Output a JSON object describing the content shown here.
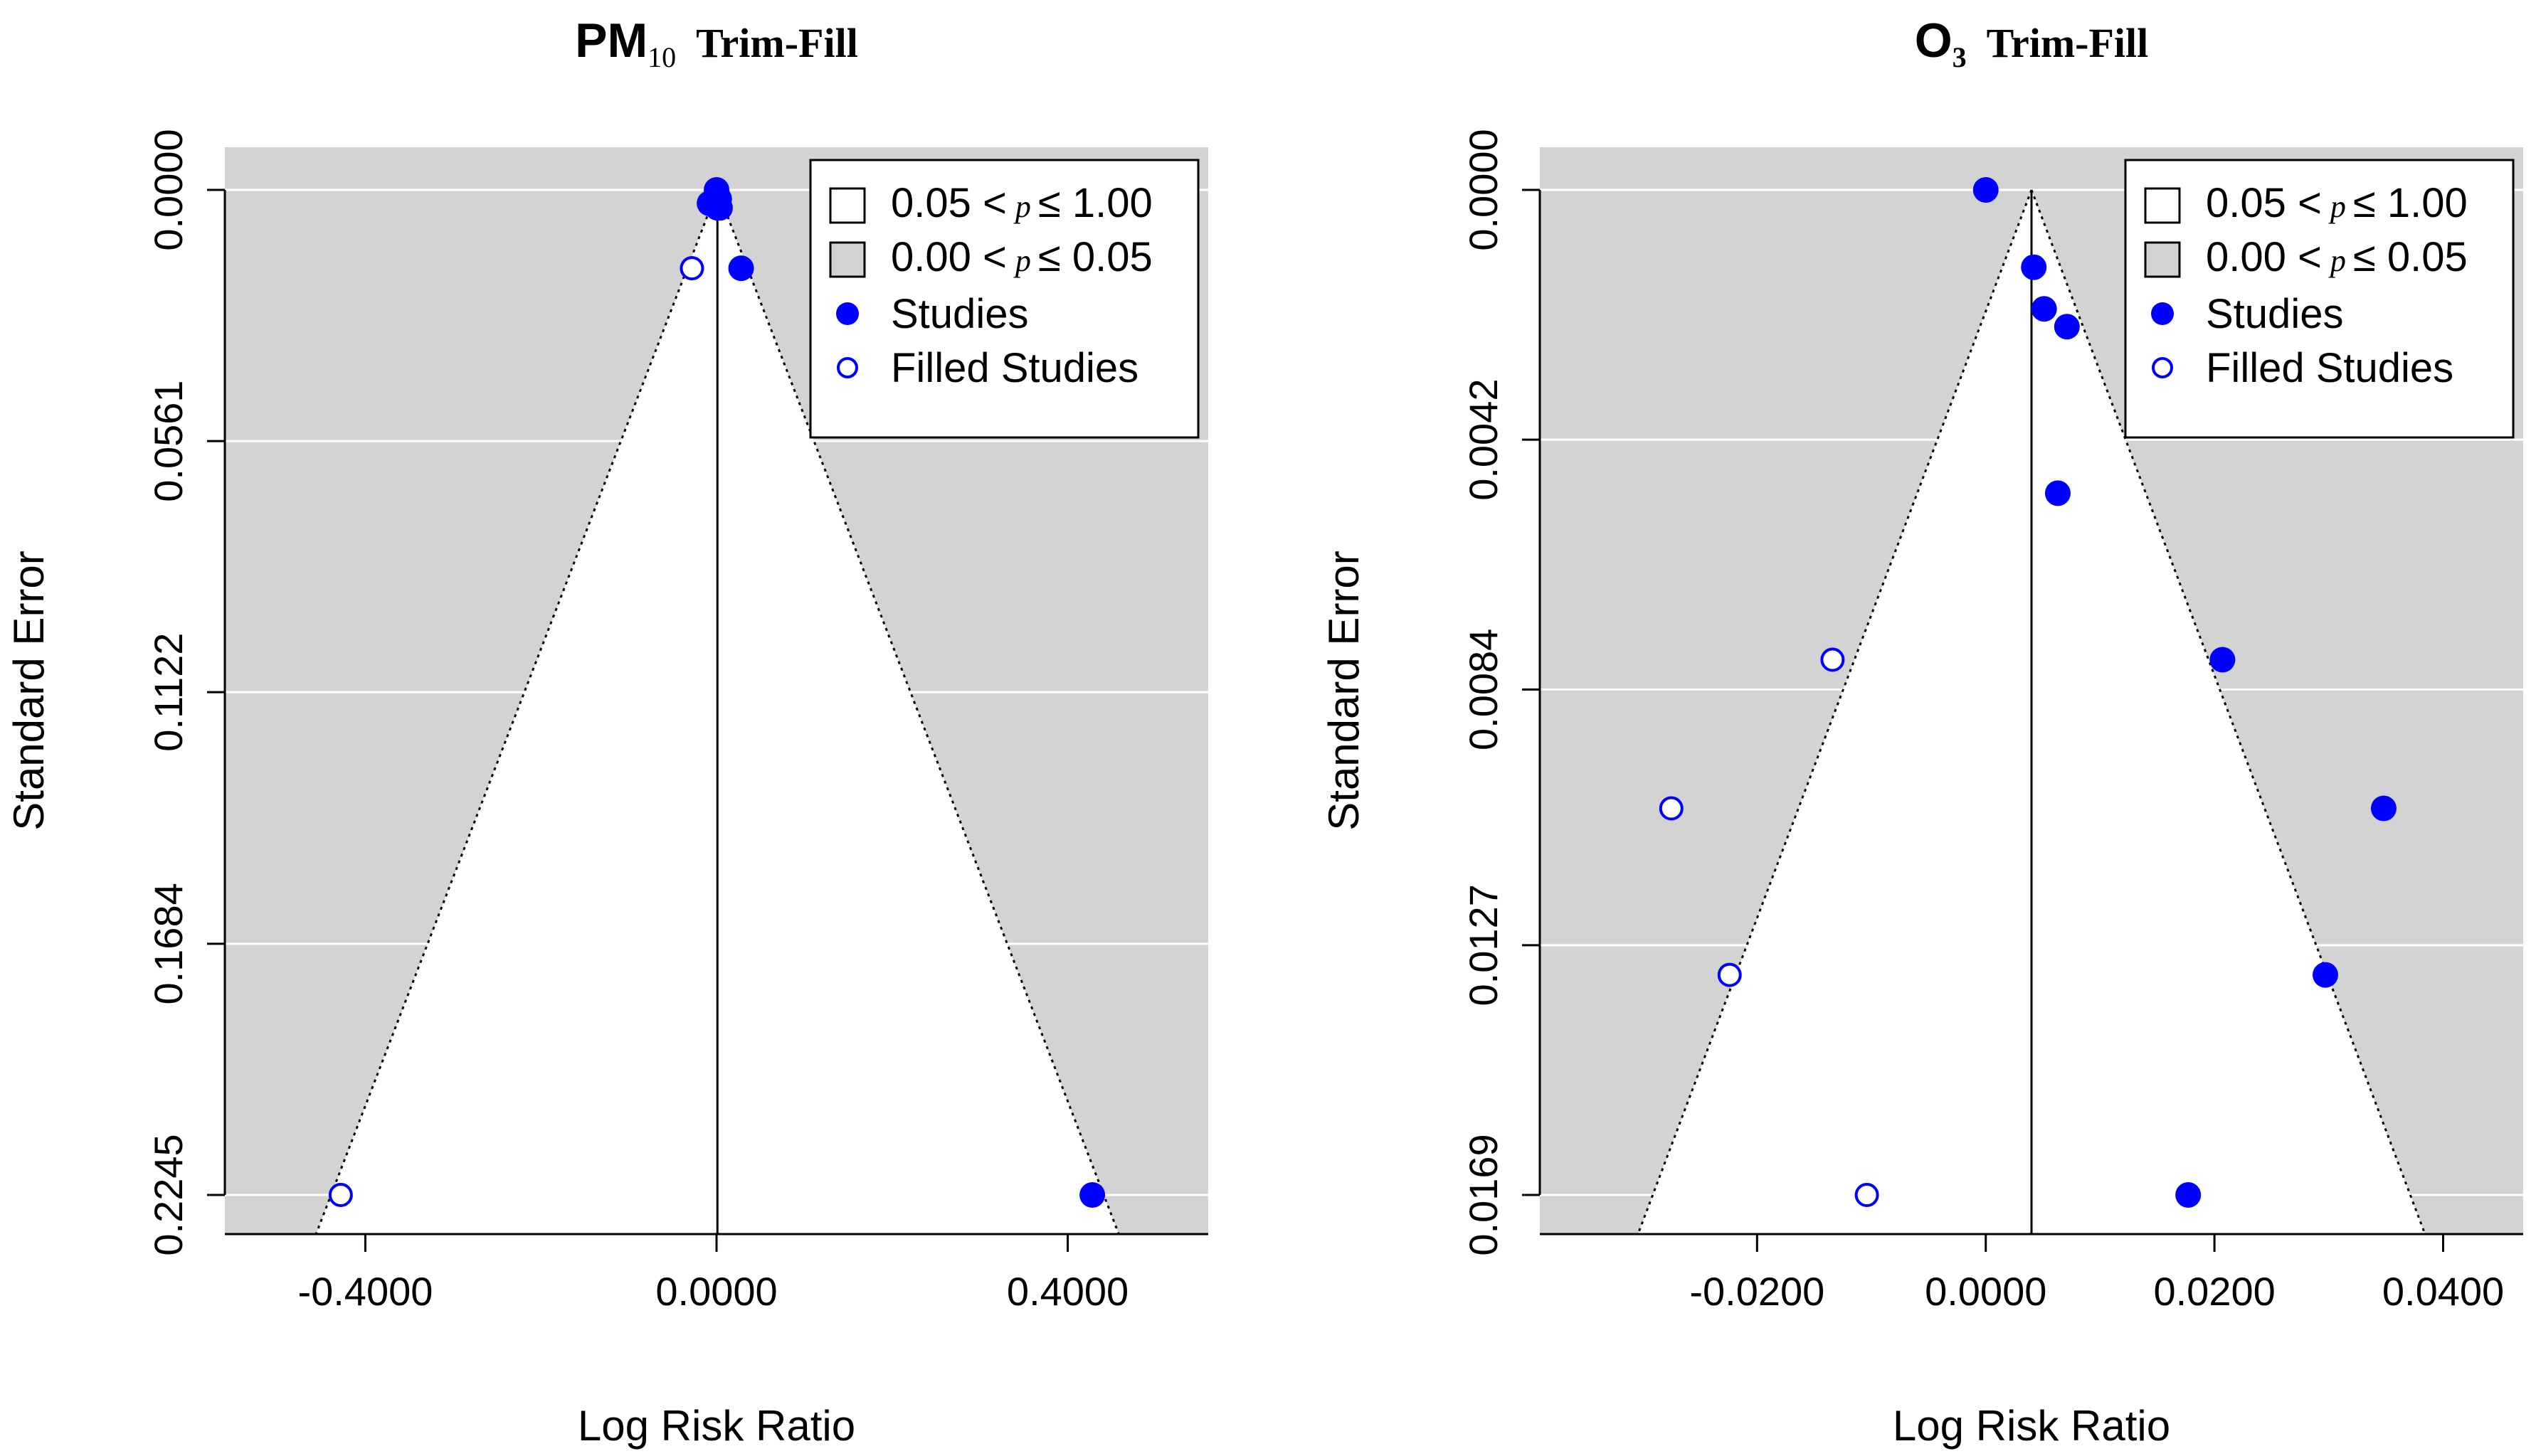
{
  "figure": {
    "colors": {
      "background": "#ffffff",
      "significant_region": "#d3d3d3",
      "study_point": "#0000ff",
      "gridline": "#ffffff",
      "axis": "#000000"
    }
  },
  "chart_data": [
    {
      "type": "scatter",
      "panel": "left",
      "title_main": "PM",
      "title_sub": "10",
      "title_method": "Trim-Fill",
      "xlabel": "Log Risk Ratio",
      "ylabel": "Standard Error",
      "xticks": [
        -0.4,
        0.0,
        0.4
      ],
      "xtick_labels": [
        "-0.4000",
        "0.0000",
        "0.4000"
      ],
      "xlim": [
        -0.56,
        0.56
      ],
      "yticks": [
        0.0,
        0.0561,
        0.1122,
        0.1684,
        0.2245
      ],
      "ytick_labels": [
        "0.0000",
        "0.0561",
        "0.1122",
        "0.1684",
        "0.2245"
      ],
      "ylim": [
        0.2245,
        0.0
      ],
      "y_reversed": true,
      "center_line": 0.001,
      "funnel": {
        "apex_x": 0.001,
        "z": 1.96,
        "se_max": 0.2245
      },
      "legend": {
        "position": "top-right",
        "items": [
          {
            "type": "box-white",
            "prefix": "0.05 <",
            "p": "p",
            "suffix": "≤ 1.00"
          },
          {
            "type": "box-gray",
            "prefix": "0.00 <",
            "p": "p",
            "suffix": "≤ 0.05"
          },
          {
            "type": "filled",
            "label": "Studies"
          },
          {
            "type": "open",
            "label": "Filled Studies"
          }
        ]
      },
      "series": [
        {
          "name": "Studies",
          "marker": "filled",
          "points": [
            [
              0.0,
              0.0
            ],
            [
              0.003,
              0.002
            ],
            [
              -0.008,
              0.003
            ],
            [
              0.001,
              0.004
            ],
            [
              0.004,
              0.004
            ],
            [
              0.0,
              0.003
            ],
            [
              0.028,
              0.0175
            ],
            [
              0.428,
              0.2245
            ]
          ]
        },
        {
          "name": "Filled Studies",
          "marker": "open",
          "points": [
            [
              -0.028,
              0.0175
            ],
            [
              -0.428,
              0.2245
            ]
          ]
        }
      ]
    },
    {
      "type": "scatter",
      "panel": "right",
      "title_main": "O",
      "title_sub": "3",
      "title_method": "Trim-Fill",
      "xlabel": "Log Risk Ratio",
      "ylabel": "Standard Error",
      "xticks": [
        -0.02,
        0.0,
        0.02,
        0.04
      ],
      "xtick_labels": [
        "-0.0200",
        "0.0000",
        "0.0200",
        "0.0400"
      ],
      "xlim": [
        -0.039,
        0.047
      ],
      "yticks": [
        0.0,
        0.0042,
        0.0084,
        0.0127,
        0.0169
      ],
      "ytick_labels": [
        "0.0000",
        "0.0042",
        "0.0084",
        "0.0127",
        "0.0169"
      ],
      "ylim": [
        0.0169,
        0.0
      ],
      "y_reversed": true,
      "center_line": 0.004,
      "funnel": {
        "apex_x": 0.004,
        "z": 1.96,
        "se_max": 0.0169
      },
      "legend": {
        "position": "top-right",
        "items": [
          {
            "type": "box-white",
            "prefix": "0.05 <",
            "p": "p",
            "suffix": "≤ 1.00"
          },
          {
            "type": "box-gray",
            "prefix": "0.00 <",
            "p": "p",
            "suffix": "≤ 0.05"
          },
          {
            "type": "filled",
            "label": "Studies"
          },
          {
            "type": "open",
            "label": "Filled Studies"
          }
        ]
      },
      "series": [
        {
          "name": "Studies",
          "marker": "filled",
          "points": [
            [
              0.0,
              0.0
            ],
            [
              0.0042,
              0.0013
            ],
            [
              0.0051,
              0.002
            ],
            [
              0.0071,
              0.0023
            ],
            [
              0.0063,
              0.0051
            ],
            [
              0.0207,
              0.0079
            ],
            [
              0.0348,
              0.0104
            ],
            [
              0.0297,
              0.0132
            ],
            [
              0.0177,
              0.0169
            ]
          ]
        },
        {
          "name": "Filled Studies",
          "marker": "open",
          "points": [
            [
              -0.0134,
              0.0079
            ],
            [
              -0.0275,
              0.0104
            ],
            [
              -0.0224,
              0.0132
            ],
            [
              -0.0104,
              0.0169
            ]
          ]
        }
      ]
    }
  ]
}
